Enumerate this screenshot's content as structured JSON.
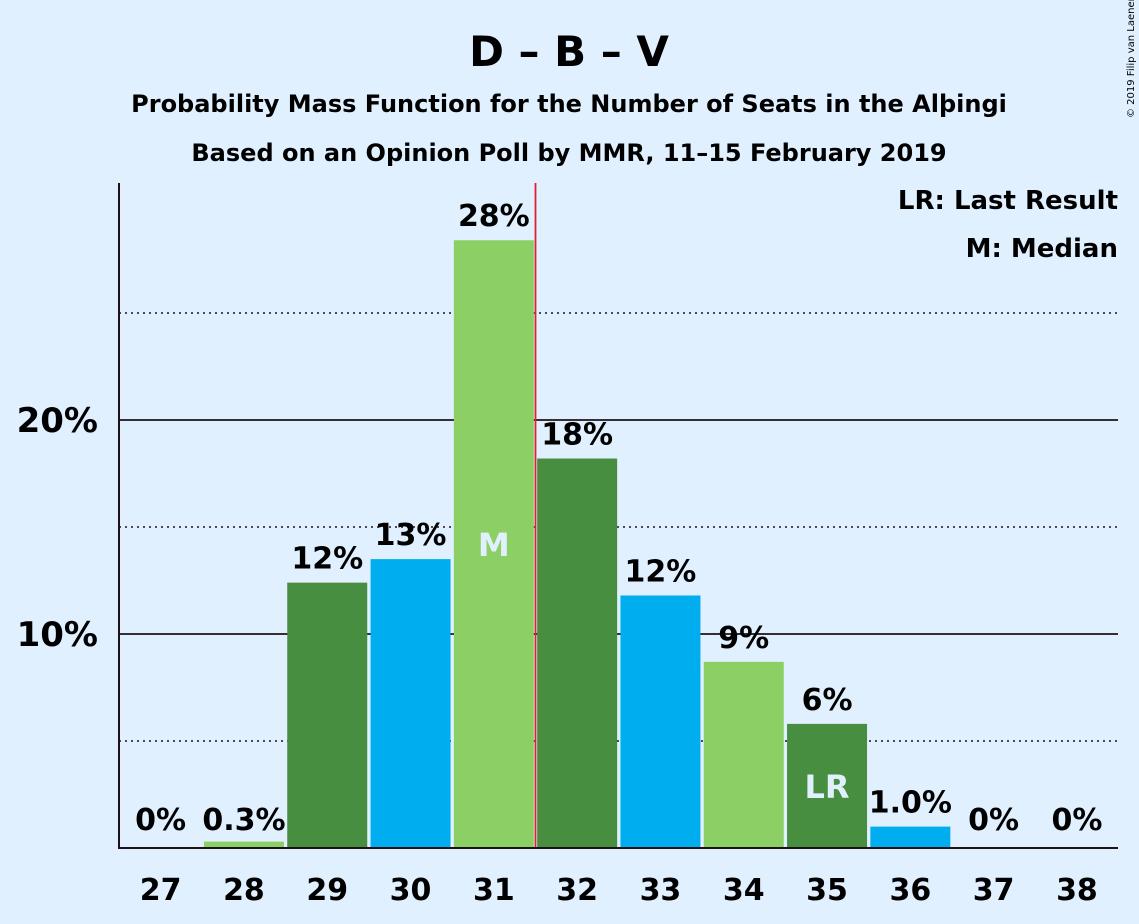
{
  "chart_data": {
    "type": "bar",
    "title": "D – B – V",
    "subtitle_lines": [
      "Probability Mass Function for the Number of Seats in the Alþingi",
      "Based on an Opinion Poll by MMR, 11–15 February 2019"
    ],
    "categories": [
      "27",
      "28",
      "29",
      "30",
      "31",
      "32",
      "33",
      "34",
      "35",
      "36",
      "37",
      "38"
    ],
    "values": [
      0,
      0.3,
      12.4,
      13.5,
      28.4,
      18.2,
      11.8,
      8.7,
      5.8,
      1.0,
      0,
      0
    ],
    "value_labels": [
      "0%",
      "0.3%",
      "12%",
      "13%",
      "28%",
      "18%",
      "12%",
      "9%",
      "6%",
      "1.0%",
      "0%",
      "0%"
    ],
    "bar_colors": [
      "#00aeef",
      "#8ccf64",
      "#478e41",
      "#00aeef",
      "#8ccf64",
      "#478e41",
      "#00aeef",
      "#8ccf64",
      "#478e41",
      "#00aeef",
      "#8ccf64",
      "#478e41"
    ],
    "ylim": [
      0,
      31
    ],
    "yticks": [
      10,
      20
    ],
    "ytick_labels": [
      "10%",
      "20%"
    ],
    "minor_gridlines": [
      5,
      15,
      25
    ],
    "median_category": "31",
    "median_marker": "M",
    "last_result_category": "35",
    "last_result_marker": "LR",
    "median_line_color": "#e0202c",
    "legend": [
      "LR: Last Result",
      "M: Median"
    ],
    "legend_position": "top-right",
    "copyright": "© 2019 Filip van Laenen"
  }
}
